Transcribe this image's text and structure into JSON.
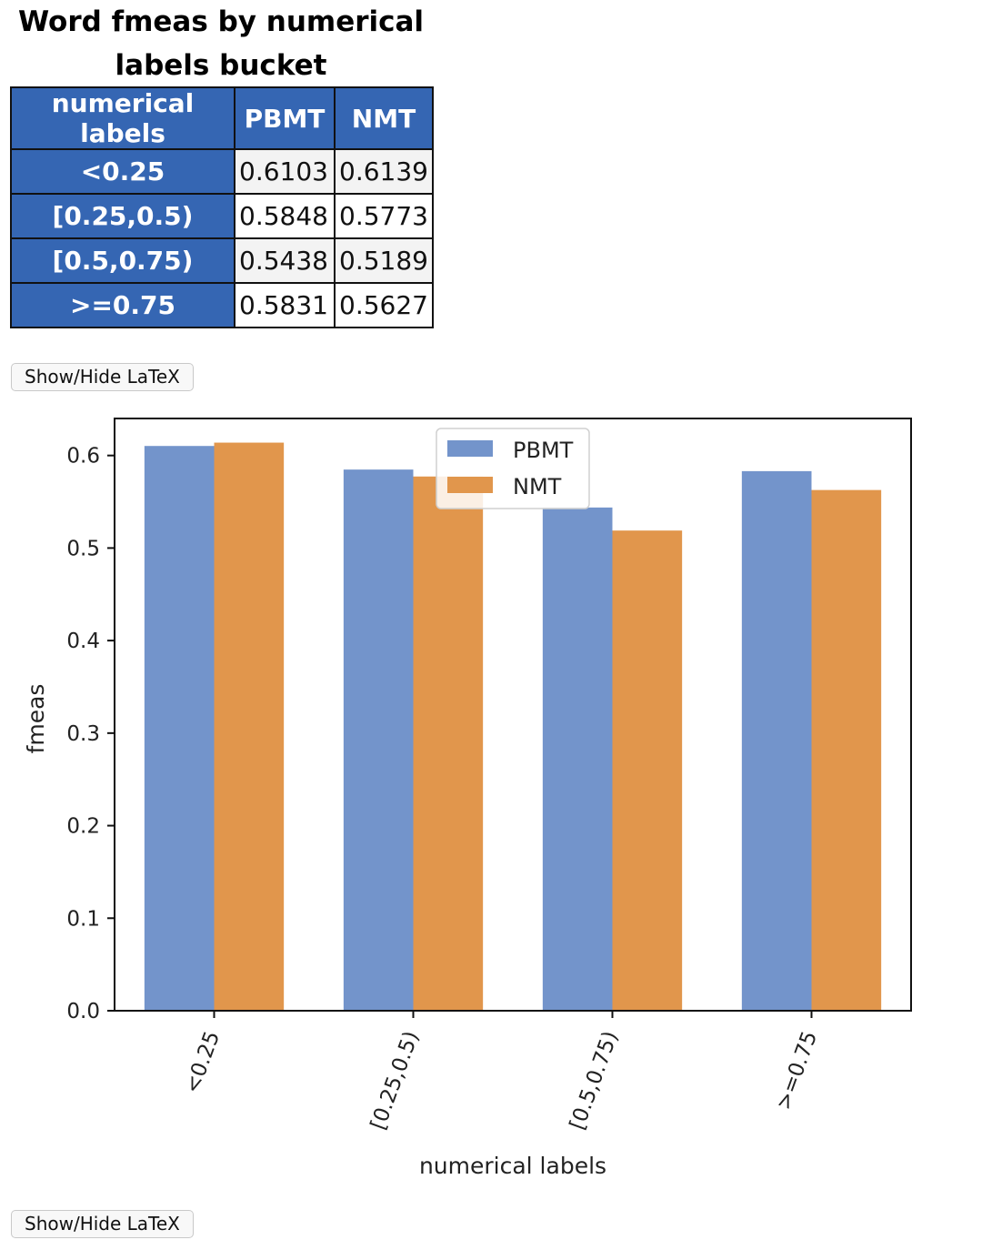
{
  "table": {
    "title_line1": "Word fmeas by numerical",
    "title_line2": "labels bucket",
    "headers": [
      "numerical labels",
      "PBMT",
      "NMT"
    ],
    "rows": [
      {
        "label": "<0.25",
        "pbmt": "0.6103",
        "nmt": "0.6139"
      },
      {
        "label": "[0.25,0.5)",
        "pbmt": "0.5848",
        "nmt": "0.5773"
      },
      {
        "label": "[0.5,0.75)",
        "pbmt": "0.5438",
        "nmt": "0.5189"
      },
      {
        "label": ">=0.75",
        "pbmt": "0.5831",
        "nmt": "0.5627"
      }
    ]
  },
  "buttons": {
    "latex_label_1": "Show/Hide LaTeX",
    "latex_label_2": "Show/Hide LaTeX"
  },
  "chart_data": {
    "type": "bar",
    "title": "",
    "categories": [
      "<0.25",
      "[0.25,0.5)",
      "[0.5,0.75)",
      ">=0.75"
    ],
    "series": [
      {
        "name": "PBMT",
        "values": [
          0.6103,
          0.5848,
          0.5438,
          0.5831
        ],
        "color": "#7394cb"
      },
      {
        "name": "NMT",
        "values": [
          0.6139,
          0.5773,
          0.5189,
          0.5627
        ],
        "color": "#e1964c"
      }
    ],
    "xlabel": "numerical labels",
    "ylabel": "fmeas",
    "ylim": [
      0,
      0.64
    ],
    "yticks": [
      "0.0",
      "0.1",
      "0.2",
      "0.3",
      "0.4",
      "0.5",
      "0.6"
    ],
    "ytick_values": [
      0,
      0.1,
      0.2,
      0.3,
      0.4,
      0.5,
      0.6
    ],
    "grid": false,
    "legend_position": "top-center"
  }
}
